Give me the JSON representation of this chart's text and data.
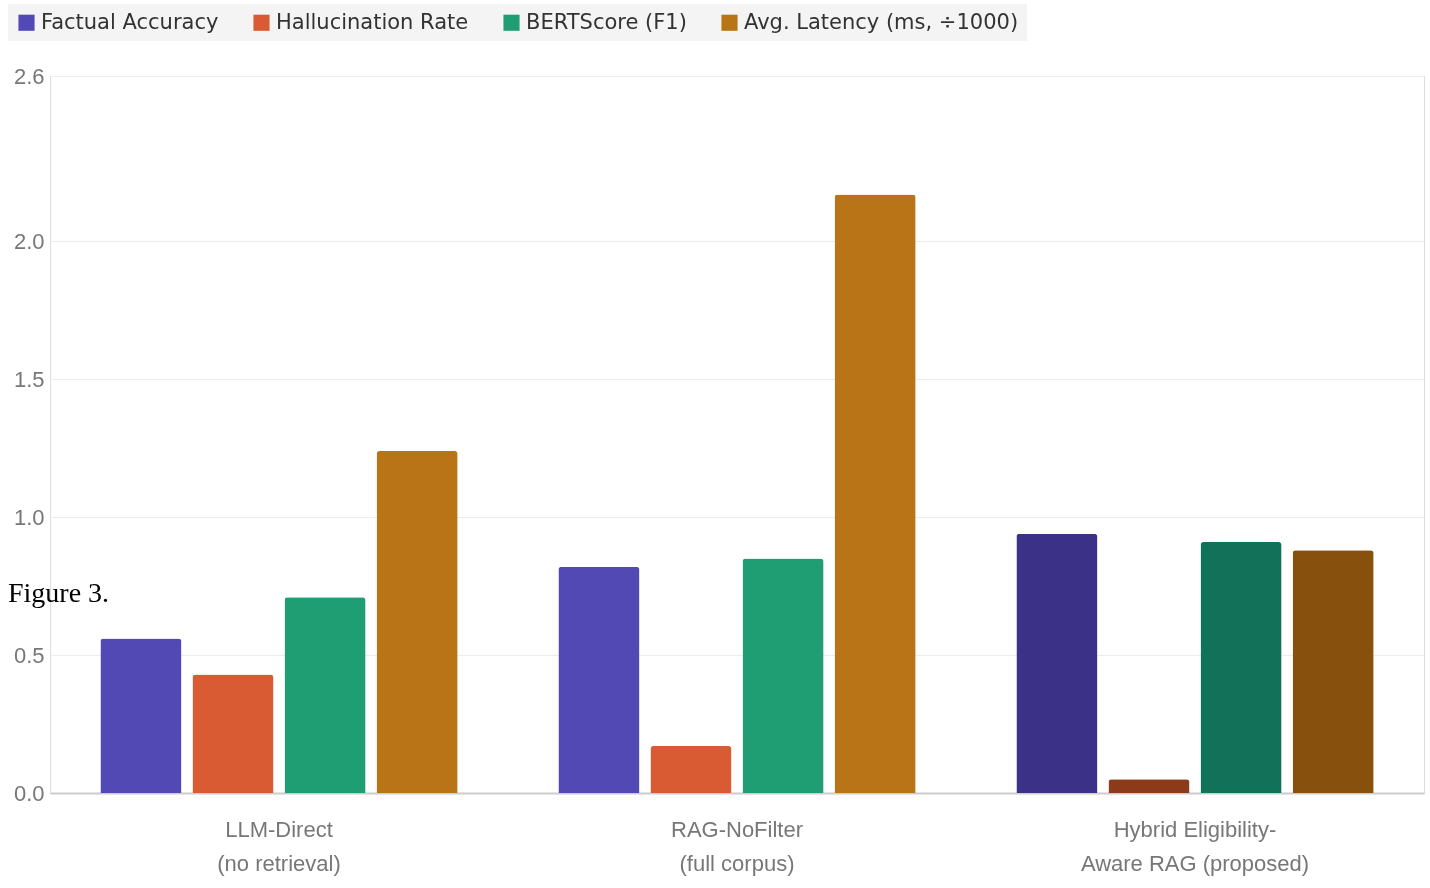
{
  "chart_data": {
    "type": "bar",
    "categories": [
      "LLM-Direct\n(no retrieval)",
      "RAG-NoFilter\n(full corpus)",
      "Hybrid Eligibility-\nAware RAG (proposed)"
    ],
    "series": [
      {
        "name": "Factual Accuracy",
        "color": "#5249b5",
        "colors": [
          "#5249b5",
          "#5249b5",
          "#3b3288"
        ],
        "values": [
          0.56,
          0.82,
          0.94
        ]
      },
      {
        "name": "Hallucination Rate",
        "color": "#d95b33",
        "colors": [
          "#d95b33",
          "#d95b33",
          "#8b3a1a"
        ],
        "values": [
          0.43,
          0.17,
          0.05
        ]
      },
      {
        "name": "BERTScore (F1)",
        "color": "#1f9e74",
        "colors": [
          "#1f9e74",
          "#1f9e74",
          "#117259"
        ],
        "values": [
          0.71,
          0.85,
          0.91
        ]
      },
      {
        "name": "Avg. Latency (ms, ÷1000)",
        "color": "#b87416",
        "colors": [
          "#b87416",
          "#b87416",
          "#88500d"
        ],
        "values": [
          1.24,
          2.17,
          0.88
        ]
      }
    ],
    "ylim": [
      0,
      2.6
    ],
    "yticks": [
      {
        "value": 0,
        "label": "0.0"
      },
      {
        "value": 0.5,
        "label": "0.5"
      },
      {
        "value": 1,
        "label": "1.0"
      },
      {
        "value": 1.5,
        "label": "1.5"
      },
      {
        "value": 2,
        "label": "2.0"
      },
      {
        "value": 2.6,
        "label": "2.6"
      }
    ],
    "grid": "y",
    "legend": "top left",
    "annotations": [
      "Figure 3."
    ]
  }
}
